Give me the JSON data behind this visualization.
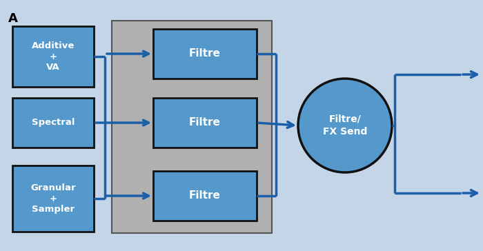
{
  "bg_color": "#c5d5e8",
  "gray_box_color": "#b0b0b0",
  "blue_box_color": "#5599cc",
  "blue_arrow_color": "#1a5fa8",
  "ellipse_color": "#5599cc",
  "ellipse_edge": "#111111",
  "src_box_edge": "#111111",
  "filt_box_edge": "#111111",
  "text_color": "#ffffff",
  "title": "A",
  "title_color": "#000000",
  "source_labels": [
    "Additive\n+\nVA",
    "Spectral",
    "Granular\n+\nSampler"
  ],
  "filter_labels": [
    "Filtre",
    "Filtre",
    "Filtre"
  ],
  "circle_label": "Filtre/\nFX Send",
  "fig_width": 7.0,
  "fig_height": 3.64
}
